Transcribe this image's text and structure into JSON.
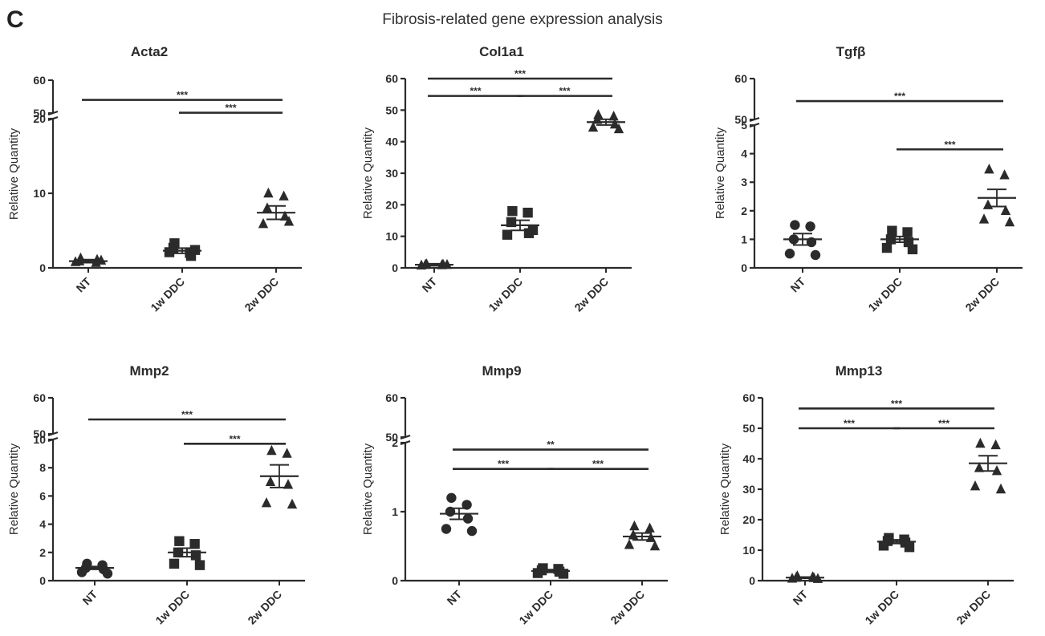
{
  "panel_letter": "C",
  "figure_title": "Fibrosis-related gene expression analysis",
  "chart_data": [
    {
      "type": "scatter",
      "title": "Acta2",
      "ylabel": "Relative Quantity",
      "categories": [
        "NT",
        "1w DDC",
        "2w DDC"
      ],
      "y_axis": "broken",
      "y_lower": {
        "range": [
          0,
          20
        ],
        "ticks": [
          0,
          10,
          20
        ]
      },
      "y_upper": {
        "range": [
          50,
          60
        ],
        "ticks": [
          50,
          60
        ]
      },
      "groups": [
        {
          "category": "NT",
          "marker": "triangle",
          "mean": 0.9,
          "sem": 0.2,
          "points": [
            1.3,
            0.7,
            0.9,
            1.1,
            0.8,
            1.0
          ]
        },
        {
          "category": "1w DDC",
          "marker": "square",
          "mean": 2.3,
          "sem": 0.35,
          "points": [
            3.3,
            2.0,
            2.7,
            1.6,
            2.1,
            2.4
          ]
        },
        {
          "category": "2w DDC",
          "marker": "triangle",
          "mean": 7.4,
          "sem": 0.9,
          "points": [
            10.0,
            9.6,
            8.0,
            6.9,
            5.9,
            6.2
          ]
        }
      ],
      "annotations": [
        {
          "from": "NT",
          "to": "2w DDC",
          "y": 54,
          "label": "***"
        },
        {
          "from": "1w DDC",
          "to": "2w DDC",
          "y": 20.8,
          "label": "***"
        }
      ]
    },
    {
      "type": "scatter",
      "title": "Col1a1",
      "ylabel": "Relative Quantity",
      "categories": [
        "NT",
        "1w DDC",
        "2w DDC"
      ],
      "y_axis": "linear",
      "ylim": [
        0,
        60
      ],
      "ticks": [
        0,
        10,
        20,
        30,
        40,
        50,
        60
      ],
      "groups": [
        {
          "category": "NT",
          "marker": "triangle",
          "mean": 1.0,
          "sem": 0.3,
          "points": [
            1.2,
            0.9,
            1.0,
            1.1,
            0.8,
            1.0
          ]
        },
        {
          "category": "1w DDC",
          "marker": "square",
          "mean": 13.5,
          "sem": 1.6,
          "points": [
            18.0,
            17.5,
            14.5,
            11.0,
            10.5,
            12.0
          ]
        },
        {
          "category": "2w DDC",
          "marker": "triangle",
          "mean": 46.2,
          "sem": 0.9,
          "points": [
            48.5,
            48.0,
            47.0,
            45.5,
            44.5,
            44.0
          ]
        }
      ],
      "annotations": [
        {
          "from": "NT",
          "to": "2w DDC",
          "y": 60,
          "label": "***"
        },
        {
          "from": "NT",
          "to": "1w DDC",
          "y": 54.5,
          "label": "***"
        },
        {
          "from": "1w DDC",
          "to": "2w DDC",
          "y": 54.5,
          "label": "***"
        }
      ]
    },
    {
      "type": "scatter",
      "title": "Tgfβ",
      "ylabel": "Relative Quantity",
      "categories": [
        "NT",
        "1w DDC",
        "2w DDC"
      ],
      "y_axis": "broken",
      "y_lower": {
        "range": [
          0,
          5
        ],
        "ticks": [
          0,
          1,
          2,
          3,
          4,
          5
        ]
      },
      "y_upper": {
        "range": [
          50,
          60
        ],
        "ticks": [
          50,
          60
        ]
      },
      "groups": [
        {
          "category": "NT",
          "marker": "circle",
          "mean": 1.0,
          "sem": 0.2,
          "points": [
            1.5,
            1.45,
            1.0,
            0.9,
            0.5,
            0.45
          ]
        },
        {
          "category": "1w DDC",
          "marker": "square",
          "mean": 1.0,
          "sem": 0.1,
          "points": [
            1.3,
            1.25,
            1.0,
            0.9,
            0.7,
            0.65
          ]
        },
        {
          "category": "2w DDC",
          "marker": "triangle",
          "mean": 2.45,
          "sem": 0.3,
          "points": [
            3.45,
            3.25,
            2.2,
            2.0,
            1.7,
            1.6
          ]
        }
      ],
      "annotations": [
        {
          "from": "NT",
          "to": "2w DDC",
          "y": 54.5,
          "label": "***"
        },
        {
          "from": "1w DDC",
          "to": "2w DDC",
          "y": 4.15,
          "label": "***"
        }
      ]
    },
    {
      "type": "scatter",
      "title": "Mmp2",
      "ylabel": "Relative Quantity",
      "categories": [
        "NT",
        "1w DDC",
        "2w DDC"
      ],
      "y_axis": "broken",
      "y_lower": {
        "range": [
          0,
          10
        ],
        "ticks": [
          0,
          2,
          4,
          6,
          8,
          10
        ]
      },
      "y_upper": {
        "range": [
          50,
          60
        ],
        "ticks": [
          50,
          60
        ]
      },
      "groups": [
        {
          "category": "NT",
          "marker": "circle",
          "mean": 0.9,
          "sem": 0.1,
          "points": [
            1.2,
            1.1,
            0.9,
            0.8,
            0.6,
            0.5
          ]
        },
        {
          "category": "1w DDC",
          "marker": "square",
          "mean": 2.0,
          "sem": 0.3,
          "points": [
            2.8,
            2.6,
            2.0,
            1.8,
            1.2,
            1.1
          ]
        },
        {
          "category": "2w DDC",
          "marker": "triangle",
          "mean": 7.4,
          "sem": 0.8,
          "points": [
            9.2,
            9.0,
            7.0,
            6.8,
            5.5,
            5.4
          ]
        }
      ],
      "annotations": [
        {
          "from": "NT",
          "to": "2w DDC",
          "y": 54,
          "label": "***"
        },
        {
          "from": "1w DDC",
          "to": "2w DDC",
          "y": 9.7,
          "label": "***"
        }
      ]
    },
    {
      "type": "scatter",
      "title": "Mmp9",
      "ylabel": "Relative Quantity",
      "categories": [
        "NT",
        "1w DDC",
        "2w DDC"
      ],
      "y_axis": "broken",
      "y_lower": {
        "range": [
          0,
          2
        ],
        "ticks": [
          0,
          1,
          2
        ]
      },
      "y_upper": {
        "range": [
          50,
          60
        ],
        "ticks": [
          50,
          60
        ]
      },
      "groups": [
        {
          "category": "NT",
          "marker": "circle",
          "mean": 0.97,
          "sem": 0.08,
          "points": [
            1.2,
            1.1,
            1.0,
            0.9,
            0.75,
            0.72
          ]
        },
        {
          "category": "1w DDC",
          "marker": "square",
          "mean": 0.14,
          "sem": 0.02,
          "points": [
            0.18,
            0.17,
            0.15,
            0.13,
            0.11,
            0.1
          ]
        },
        {
          "category": "2w DDC",
          "marker": "triangle",
          "mean": 0.64,
          "sem": 0.05,
          "points": [
            0.79,
            0.76,
            0.66,
            0.62,
            0.52,
            0.5
          ]
        }
      ],
      "annotations": [
        {
          "from": "NT",
          "to": "2w DDC",
          "y": 1.9,
          "label": "**"
        },
        {
          "from": "NT",
          "to": "1w DDC",
          "y": 1.62,
          "label": "***"
        },
        {
          "from": "1w DDC",
          "to": "2w DDC",
          "y": 1.62,
          "label": "***"
        }
      ]
    },
    {
      "type": "scatter",
      "title": "Mmp13",
      "ylabel": "Relative Quantity",
      "categories": [
        "NT",
        "1w DDC",
        "2w DDC"
      ],
      "y_axis": "linear",
      "ylim": [
        0,
        60
      ],
      "ticks": [
        0,
        10,
        20,
        30,
        40,
        50,
        60
      ],
      "groups": [
        {
          "category": "NT",
          "marker": "triangle",
          "mean": 1.0,
          "sem": 0.2,
          "points": [
            1.5,
            1.2,
            1.0,
            0.9,
            0.7,
            0.6
          ]
        },
        {
          "category": "1w DDC",
          "marker": "square",
          "mean": 12.8,
          "sem": 0.6,
          "points": [
            14.0,
            13.5,
            13.0,
            12.5,
            11.5,
            11.0
          ]
        },
        {
          "category": "2w DDC",
          "marker": "triangle",
          "mean": 38.5,
          "sem": 2.5,
          "points": [
            45.0,
            44.5,
            37.0,
            36.0,
            31.0,
            30.0
          ]
        }
      ],
      "annotations": [
        {
          "from": "NT",
          "to": "2w DDC",
          "y": 56.5,
          "label": "***"
        },
        {
          "from": "NT",
          "to": "1w DDC",
          "y": 50,
          "label": "***"
        },
        {
          "from": "1w DDC",
          "to": "2w DDC",
          "y": 50,
          "label": "***"
        }
      ]
    }
  ]
}
